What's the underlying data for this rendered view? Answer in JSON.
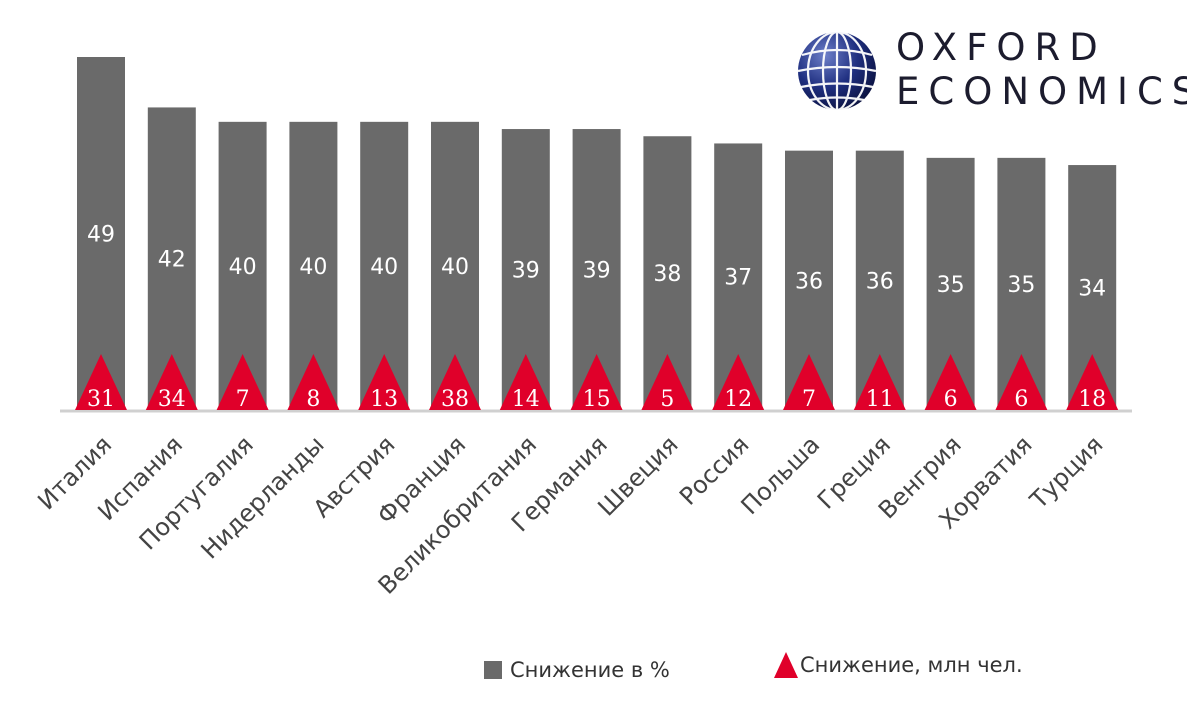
{
  "logo": {
    "line1": "OXFORD",
    "line2": "ECONOMICS"
  },
  "colors": {
    "bar": "#6a6a6a",
    "triangle": "#e0002a",
    "axis": "#d0d0d0",
    "bar_label": "#ffffff"
  },
  "legend": {
    "bars_label": "Снижение в %",
    "triangles_label": "Снижение, млн чел."
  },
  "chart_data": {
    "type": "bar",
    "categories": [
      "Италия",
      "Испания",
      "Португалия",
      "Нидерланды",
      "Австрия",
      "Франция",
      "Великобритания",
      "Германия",
      "Швеция",
      "Россия",
      "Польша",
      "Греция",
      "Венгрия",
      "Хорватия",
      "Турция"
    ],
    "series": [
      {
        "name": "Снижение в %",
        "values": [
          49,
          42,
          40,
          40,
          40,
          40,
          39,
          39,
          38,
          37,
          36,
          36,
          35,
          35,
          34
        ]
      },
      {
        "name": "Снижение, млн чел.",
        "values": [
          31,
          34,
          7,
          8,
          13,
          38,
          14,
          15,
          5,
          12,
          7,
          11,
          6,
          6,
          18
        ]
      }
    ],
    "ylim": [
      0,
      49
    ],
    "grid": false,
    "legend_position": "bottom"
  }
}
